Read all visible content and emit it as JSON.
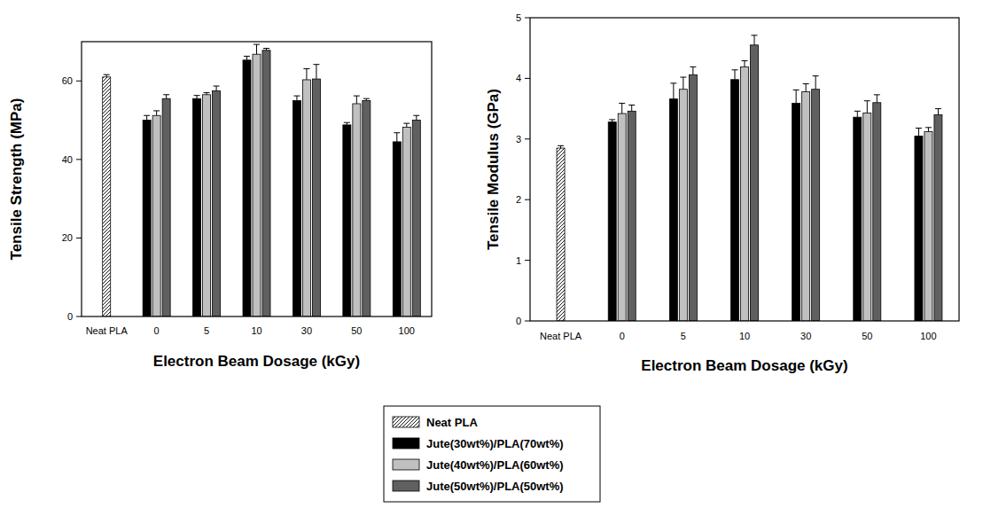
{
  "chart_data": [
    {
      "type": "bar",
      "y_label": "Tensile Strength (MPa)",
      "x_label": "Electron Beam Dosage (kGy)",
      "categories": [
        "Neat PLA",
        "0",
        "5",
        "10",
        "30",
        "50",
        "100"
      ],
      "ylim": [
        0,
        70
      ],
      "yticks": [
        0,
        20,
        40,
        60
      ],
      "legend": "bottom",
      "series": [
        {
          "name": "Neat PLA",
          "color": "#ffffff",
          "values": [
            61,
            null,
            null,
            null,
            null,
            null,
            null
          ],
          "errors": [
            0.6,
            null,
            null,
            null,
            null,
            null,
            null
          ]
        },
        {
          "name": "Jute(30wt%)/PLA(70wt%)",
          "color": "#000000",
          "values": [
            null,
            50,
            55.5,
            65.3,
            55,
            48.8,
            44.5
          ],
          "errors": [
            null,
            1.2,
            0.8,
            1,
            1.2,
            0.6,
            2.3
          ]
        },
        {
          "name": "Jute(40wt%)/PLA(60wt%)",
          "color": "#c0c0c0",
          "values": [
            null,
            51.2,
            56.5,
            66.8,
            60.3,
            54.2,
            48.2
          ],
          "errors": [
            null,
            1.2,
            0.5,
            2.5,
            2.8,
            2,
            1
          ]
        },
        {
          "name": "Jute(50wt%)/PLA(50wt%)",
          "color": "#606060",
          "values": [
            null,
            55.5,
            57.5,
            67.8,
            60.5,
            55,
            50
          ],
          "errors": [
            null,
            1,
            1.2,
            0.5,
            3.7,
            0.5,
            1.2
          ]
        }
      ]
    },
    {
      "type": "bar",
      "y_label": "Tensile Modulus (GPa)",
      "x_label": "Electron Beam Dosage (kGy)",
      "categories": [
        "Neat PLA",
        "0",
        "5",
        "10",
        "30",
        "50",
        "100"
      ],
      "ylim": [
        0,
        5
      ],
      "yticks": [
        0,
        1,
        2,
        3,
        4,
        5
      ],
      "series": [
        {
          "name": "Neat PLA",
          "color": "#ffffff",
          "values": [
            2.85,
            null,
            null,
            null,
            null,
            null,
            null
          ],
          "errors": [
            0.04,
            null,
            null,
            null,
            null,
            null,
            null
          ]
        },
        {
          "name": "Jute(30wt%)/PLA(70wt%)",
          "color": "#000000",
          "values": [
            null,
            3.28,
            3.66,
            3.98,
            3.59,
            3.36,
            3.05
          ],
          "errors": [
            null,
            0.04,
            0.26,
            0.16,
            0.22,
            0.1,
            0.13
          ]
        },
        {
          "name": "Jute(40wt%)/PLA(60wt%)",
          "color": "#c0c0c0",
          "values": [
            null,
            3.42,
            3.82,
            4.19,
            3.78,
            3.43,
            3.12
          ],
          "errors": [
            null,
            0.17,
            0.2,
            0.1,
            0.13,
            0.2,
            0.07
          ]
        },
        {
          "name": "Jute(50wt%)/PLA(50wt%)",
          "color": "#606060",
          "values": [
            null,
            3.46,
            4.06,
            4.55,
            3.82,
            3.6,
            3.4
          ],
          "errors": [
            null,
            0.1,
            0.13,
            0.16,
            0.22,
            0.13,
            0.1
          ]
        }
      ]
    }
  ]
}
